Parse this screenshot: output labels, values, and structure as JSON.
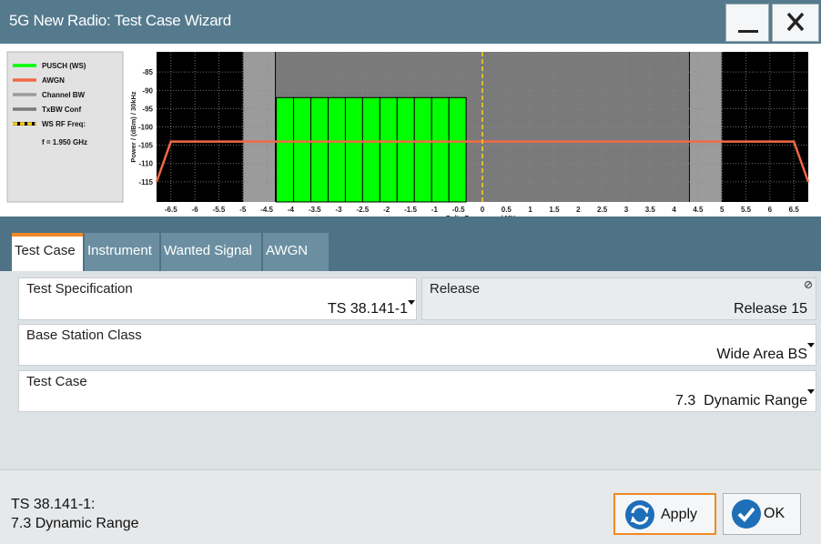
{
  "window": {
    "title": "5G New Radio: Test Case Wizard"
  },
  "chart_data": {
    "type": "combo",
    "xlabel": "Delta Frequency / MHz",
    "ylabel": "Power / (dBm) / 30kHz",
    "xlim": [
      -6.8,
      6.8
    ],
    "ylim": [
      -120.5,
      -79.5
    ],
    "xticks": [
      -6.5,
      -6,
      -5.5,
      -5,
      -4.5,
      -4,
      -3.5,
      -3,
      -2.5,
      -2,
      -1.5,
      -1,
      -0.5,
      0,
      0.5,
      1,
      1.5,
      2,
      2.5,
      3,
      3.5,
      4,
      4.5,
      5,
      5.5,
      6,
      6.5
    ],
    "yticks": [
      -85,
      -90,
      -95,
      -100,
      -105,
      -110,
      -115
    ],
    "grid": true,
    "series": [
      {
        "name": "PUSCH (WS)",
        "color": "#00ff00",
        "kind": "bar",
        "bins": [
          -4.3,
          -3.94,
          -3.58,
          -3.22,
          -2.86,
          -2.5,
          -2.14,
          -1.78,
          -1.42,
          -1.06,
          -0.7,
          -0.34
        ],
        "values": [
          -92,
          -92,
          -92,
          -92,
          -92,
          -92,
          -92,
          -92,
          -92,
          -92,
          -92
        ]
      },
      {
        "name": "AWGN",
        "color": "#f26a45",
        "kind": "line",
        "x": [
          -6.8,
          -6.5,
          6.5,
          6.8
        ],
        "values": [
          -115,
          -104,
          -104,
          -115
        ]
      },
      {
        "name": "Channel BW",
        "color": "#9b9b9b",
        "kind": "span",
        "x": [
          -5,
          5
        ]
      },
      {
        "name": "TxBW Conf",
        "color": "#7a7a7a",
        "kind": "span",
        "x": [
          -4.32,
          4.32
        ]
      },
      {
        "name": "WS RF Freq:",
        "color": "#ffd21a",
        "kind": "vline",
        "x": [
          0
        ]
      }
    ],
    "annotation": "f = 1.950 GHz"
  },
  "tabs": [
    "Test Case",
    "Instrument",
    "Wanted Signal",
    "AWGN"
  ],
  "fields": [
    {
      "label": "Test Specification",
      "value": "TS 38.141-1"
    },
    {
      "label": "Release",
      "value": "Release 15"
    },
    {
      "label": "Base Station Class",
      "value": "Wide Area BS"
    },
    {
      "label": "Test Case",
      "value": "7.3  Dynamic Range"
    }
  ],
  "status": [
    "TS 38.141-1:",
    "7.3 Dynamic Range"
  ],
  "buttons": [
    "Apply",
    "OK"
  ]
}
